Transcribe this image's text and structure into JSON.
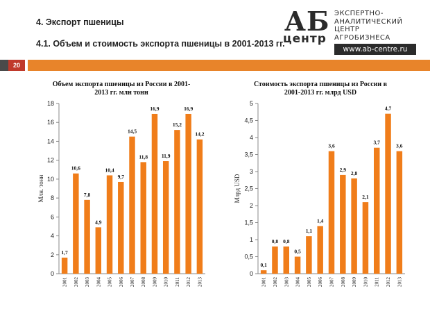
{
  "header": {
    "section": "4. Экспорт пшеницы",
    "subtitle": "4.1. Объем и стоимость экспорта пшеницы в 2001-2013 гг."
  },
  "logo": {
    "ab": "АБ",
    "centr": "центр",
    "line1": "ЭКСПЕРТНО-",
    "line2": "АНАЛИТИЧЕСКИЙ",
    "line3": "ЦЕНТР",
    "line4": "АГРОБИЗНЕСА",
    "url": "www.ab-centre.ru"
  },
  "page_number": "20",
  "colors": {
    "bar": "#f07d1a",
    "band": "#e8842a",
    "page_badge": "#c0392b"
  },
  "chart_data": [
    {
      "type": "bar",
      "title_line1": "Объем экспорта пшеницы из России в 2001-",
      "title_line2": "2013 гг. млн тонн",
      "ylabel": "Млн. тонн",
      "categories": [
        "2001",
        "2002",
        "2003",
        "2004",
        "2005",
        "2006",
        "2007",
        "2008",
        "2009",
        "2010",
        "2011",
        "2012",
        "2013"
      ],
      "values": [
        1.7,
        10.6,
        7.8,
        4.9,
        10.4,
        9.7,
        14.5,
        11.8,
        16.9,
        11.9,
        15.2,
        16.9,
        14.2
      ],
      "labels": [
        "1,7",
        "10,6",
        "7,8",
        "4,9",
        "10,4",
        "9,7",
        "14,5",
        "11,8",
        "16,9",
        "11,9",
        "15,2",
        "16,9",
        "14,2"
      ],
      "ylim": [
        0,
        18
      ],
      "yticks": [
        0,
        2,
        4,
        6,
        8,
        10,
        12,
        14,
        16,
        18
      ],
      "ytick_labels": [
        "0",
        "2",
        "4",
        "6",
        "8",
        "10",
        "12",
        "14",
        "16",
        "18"
      ],
      "grid": false
    },
    {
      "type": "bar",
      "title_line1": "Стоимость экспорта пшеницы из России в",
      "title_line2": "2001-2013 гг. млрд USD",
      "ylabel": "Млрд USD",
      "categories": [
        "2001",
        "2002",
        "2003",
        "2004",
        "2005",
        "2006",
        "2007",
        "2008",
        "2009",
        "2010",
        "2011",
        "2012",
        "2013"
      ],
      "values": [
        0.1,
        0.8,
        0.8,
        0.5,
        1.1,
        1.4,
        3.6,
        2.9,
        2.8,
        2.1,
        3.7,
        4.7,
        3.6
      ],
      "labels": [
        "0,1",
        "0,8",
        "0,8",
        "0,5",
        "1,1",
        "1,4",
        "3,6",
        "2,9",
        "2,8",
        "2,1",
        "3,7",
        "4,7",
        "3,6"
      ],
      "ylim": [
        0,
        5
      ],
      "yticks": [
        0,
        0.5,
        1,
        1.5,
        2,
        2.5,
        3,
        3.5,
        4,
        4.5,
        5
      ],
      "ytick_labels": [
        "0",
        "0,5",
        "1",
        "1,5",
        "2",
        "2,5",
        "3",
        "3,5",
        "4",
        "4,5",
        "5"
      ],
      "grid": false
    }
  ]
}
